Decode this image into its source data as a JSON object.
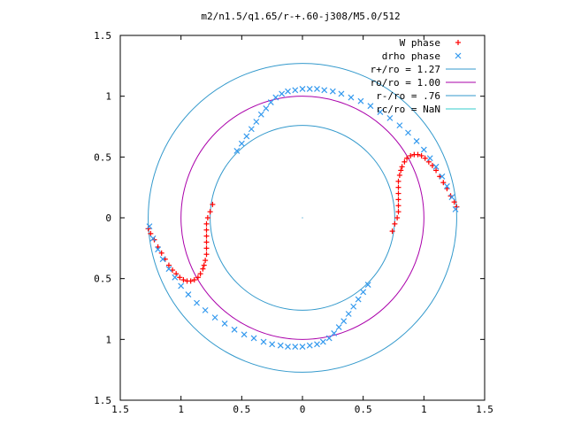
{
  "chart_data": {
    "type": "scatter",
    "title": "m2/n1.5/q1.65/r-+.60-j308/M5.0/512",
    "xlabel": "",
    "ylabel": "",
    "xlim": [
      -1.5,
      1.5
    ],
    "ylim": [
      -1.5,
      1.5
    ],
    "x_ticks": [
      {
        "value": -1.5,
        "label": "1.5"
      },
      {
        "value": -1.0,
        "label": "1"
      },
      {
        "value": -0.5,
        "label": "0.5"
      },
      {
        "value": 0.0,
        "label": "0"
      },
      {
        "value": 0.5,
        "label": "0.5"
      },
      {
        "value": 1.0,
        "label": "1"
      },
      {
        "value": 1.5,
        "label": "1.5"
      }
    ],
    "y_ticks": [
      {
        "value": 1.5,
        "label": "1.5"
      },
      {
        "value": 1.0,
        "label": "1"
      },
      {
        "value": 0.5,
        "label": "0.5"
      },
      {
        "value": 0.0,
        "label": "0"
      },
      {
        "value": -0.5,
        "label": "0.5"
      },
      {
        "value": -1.0,
        "label": "1"
      },
      {
        "value": -1.5,
        "label": "1.5"
      }
    ],
    "legend_position": "top-right",
    "grid": false,
    "legend": [
      {
        "label": "W phase",
        "color": "#ff0000",
        "marker": "plus"
      },
      {
        "label": "drho phase",
        "color": "#3399ee",
        "marker": "cross"
      },
      {
        "label": "r+/ro = 1.27",
        "color": "#3399cc",
        "marker": "line"
      },
      {
        "label": "ro/ro = 1.00",
        "color": "#aa00aa",
        "marker": "line"
      },
      {
        "label": "r-/ro = .76",
        "color": "#3399cc",
        "marker": "line"
      },
      {
        "label": "rc/ro = NaN",
        "color": "#33cccc",
        "marker": "line"
      }
    ],
    "circles": [
      {
        "name": "r+/ro",
        "radius": 1.27,
        "color": "#3399cc"
      },
      {
        "name": "ro/ro",
        "radius": 1.0,
        "color": "#aa00aa"
      },
      {
        "name": "r-/ro",
        "radius": 0.76,
        "color": "#3399cc"
      }
    ],
    "series": [
      {
        "name": "W phase",
        "color": "#ff0000",
        "marker": "plus",
        "points": [
          [
            0.74,
            -0.11
          ],
          [
            0.76,
            -0.05
          ],
          [
            0.78,
            0.0
          ],
          [
            0.79,
            0.05
          ],
          [
            0.79,
            0.1
          ],
          [
            0.79,
            0.15
          ],
          [
            0.79,
            0.2
          ],
          [
            0.79,
            0.25
          ],
          [
            0.79,
            0.3
          ],
          [
            0.8,
            0.35
          ],
          [
            0.81,
            0.39
          ],
          [
            0.82,
            0.42
          ],
          [
            0.84,
            0.46
          ],
          [
            0.86,
            0.49
          ],
          [
            0.89,
            0.51
          ],
          [
            0.92,
            0.52
          ],
          [
            0.95,
            0.52
          ],
          [
            0.98,
            0.51
          ],
          [
            1.01,
            0.49
          ],
          [
            1.04,
            0.46
          ],
          [
            1.07,
            0.43
          ],
          [
            1.1,
            0.39
          ],
          [
            1.13,
            0.34
          ],
          [
            1.16,
            0.29
          ],
          [
            1.19,
            0.24
          ],
          [
            1.22,
            0.18
          ],
          [
            1.25,
            0.13
          ],
          [
            1.27,
            0.09
          ],
          [
            -0.74,
            0.11
          ],
          [
            -0.76,
            0.05
          ],
          [
            -0.78,
            0.0
          ],
          [
            -0.79,
            -0.05
          ],
          [
            -0.79,
            -0.1
          ],
          [
            -0.79,
            -0.15
          ],
          [
            -0.79,
            -0.2
          ],
          [
            -0.79,
            -0.25
          ],
          [
            -0.79,
            -0.3
          ],
          [
            -0.8,
            -0.35
          ],
          [
            -0.81,
            -0.39
          ],
          [
            -0.82,
            -0.42
          ],
          [
            -0.84,
            -0.46
          ],
          [
            -0.86,
            -0.49
          ],
          [
            -0.89,
            -0.51
          ],
          [
            -0.92,
            -0.52
          ],
          [
            -0.95,
            -0.52
          ],
          [
            -0.98,
            -0.51
          ],
          [
            -1.01,
            -0.49
          ],
          [
            -1.04,
            -0.46
          ],
          [
            -1.07,
            -0.43
          ],
          [
            -1.1,
            -0.39
          ],
          [
            -1.13,
            -0.34
          ],
          [
            -1.16,
            -0.29
          ],
          [
            -1.19,
            -0.24
          ],
          [
            -1.22,
            -0.18
          ],
          [
            -1.25,
            -0.13
          ],
          [
            -1.27,
            -0.09
          ]
        ]
      },
      {
        "name": "drho phase",
        "color": "#3399ee",
        "marker": "cross",
        "points": [
          [
            -0.54,
            0.55
          ],
          [
            -0.5,
            0.61
          ],
          [
            -0.46,
            0.67
          ],
          [
            -0.42,
            0.73
          ],
          [
            -0.38,
            0.79
          ],
          [
            -0.34,
            0.85
          ],
          [
            -0.3,
            0.9
          ],
          [
            -0.26,
            0.95
          ],
          [
            -0.22,
            0.99
          ],
          [
            -0.17,
            1.02
          ],
          [
            -0.12,
            1.04
          ],
          [
            -0.06,
            1.05
          ],
          [
            0.0,
            1.06
          ],
          [
            0.06,
            1.06
          ],
          [
            0.12,
            1.06
          ],
          [
            0.18,
            1.05
          ],
          [
            0.25,
            1.04
          ],
          [
            0.32,
            1.02
          ],
          [
            0.4,
            0.99
          ],
          [
            0.48,
            0.96
          ],
          [
            0.56,
            0.92
          ],
          [
            0.64,
            0.87
          ],
          [
            0.72,
            0.82
          ],
          [
            0.8,
            0.76
          ],
          [
            0.87,
            0.7
          ],
          [
            0.94,
            0.63
          ],
          [
            1.0,
            0.56
          ],
          [
            1.05,
            0.49
          ],
          [
            1.1,
            0.42
          ],
          [
            1.15,
            0.34
          ],
          [
            1.19,
            0.26
          ],
          [
            1.23,
            0.17
          ],
          [
            1.26,
            0.07
          ],
          [
            0.54,
            -0.55
          ],
          [
            0.5,
            -0.61
          ],
          [
            0.46,
            -0.67
          ],
          [
            0.42,
            -0.73
          ],
          [
            0.38,
            -0.79
          ],
          [
            0.34,
            -0.85
          ],
          [
            0.3,
            -0.9
          ],
          [
            0.26,
            -0.95
          ],
          [
            0.22,
            -0.99
          ],
          [
            0.17,
            -1.02
          ],
          [
            0.12,
            -1.04
          ],
          [
            0.06,
            -1.05
          ],
          [
            0.0,
            -1.06
          ],
          [
            -0.06,
            -1.06
          ],
          [
            -0.12,
            -1.06
          ],
          [
            -0.18,
            -1.05
          ],
          [
            -0.25,
            -1.04
          ],
          [
            -0.32,
            -1.02
          ],
          [
            -0.4,
            -0.99
          ],
          [
            -0.48,
            -0.96
          ],
          [
            -0.56,
            -0.92
          ],
          [
            -0.64,
            -0.87
          ],
          [
            -0.72,
            -0.82
          ],
          [
            -0.8,
            -0.76
          ],
          [
            -0.87,
            -0.7
          ],
          [
            -0.94,
            -0.63
          ],
          [
            -1.0,
            -0.56
          ],
          [
            -1.05,
            -0.49
          ],
          [
            -1.1,
            -0.42
          ],
          [
            -1.15,
            -0.34
          ],
          [
            -1.19,
            -0.26
          ],
          [
            -1.23,
            -0.17
          ],
          [
            -1.26,
            -0.07
          ]
        ]
      }
    ]
  }
}
